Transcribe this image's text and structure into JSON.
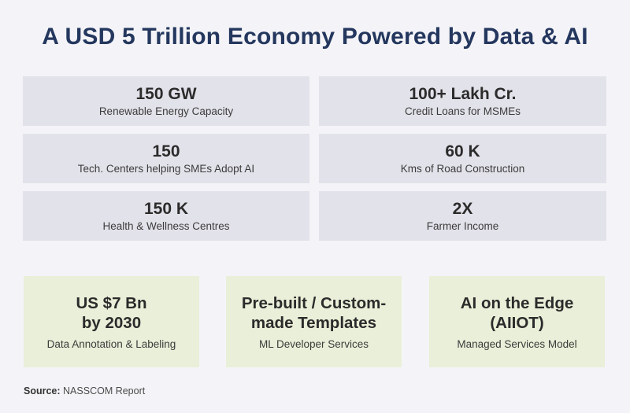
{
  "title": "A USD 5 Trillion Economy Powered by Data & AI",
  "stats": [
    {
      "value": "150 GW",
      "label": "Renewable Energy Capacity"
    },
    {
      "value": "100+ Lakh Cr.",
      "label": "Credit Loans for MSMEs"
    },
    {
      "value": "150",
      "label": "Tech. Centers helping SMEs Adopt AI"
    },
    {
      "value": "60 K",
      "label": "Kms of Road Construction"
    },
    {
      "value": "150 K",
      "label": "Health & Wellness Centres"
    },
    {
      "value": "2X",
      "label": "Farmer Income"
    }
  ],
  "cards": [
    {
      "line1": "US $7 Bn",
      "line2": "by 2030",
      "label": "Data Annotation & Labeling"
    },
    {
      "line1": "Pre-built / Custom-",
      "line2": "made Templates",
      "label": "ML Developer Services"
    },
    {
      "line1": "AI on the Edge",
      "line2": "(AIIOT)",
      "label": "Managed Services Model"
    }
  ],
  "source": {
    "label": "Source:",
    "text": "NASSCOM Report"
  },
  "colors": {
    "title": "#24375e",
    "stat_bg": "#e2e2ea",
    "card_bg": "#e9efd8",
    "page_bg": "#f4f4f8"
  }
}
